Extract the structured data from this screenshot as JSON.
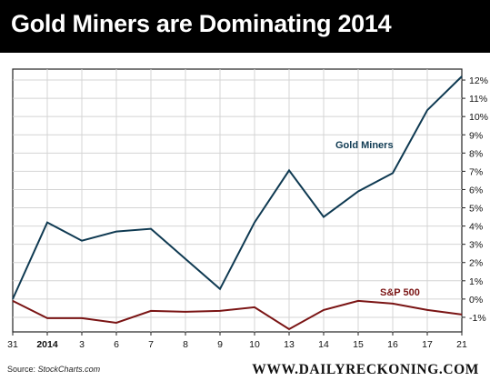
{
  "header": {
    "title": "Gold Miners are Dominating 2014"
  },
  "footer": {
    "source_label": "Source:",
    "source_name": "StockCharts.com",
    "brand": "WWW.DAILYRECKONING.COM"
  },
  "colors": {
    "gold_miners": "#0f3a52",
    "sp500": "#7a1414",
    "grid": "#d4d4d4",
    "title_bar": "#000000"
  },
  "chart_data": {
    "type": "line",
    "title": "Gold Miners are Dominating 2014",
    "x": [
      "31",
      "2014",
      "3",
      "6",
      "7",
      "8",
      "9",
      "10",
      "13",
      "14",
      "15",
      "16",
      "17",
      "21"
    ],
    "y_ticks": [
      "12%",
      "11%",
      "10%",
      "9%",
      "8%",
      "7%",
      "6%",
      "5%",
      "4%",
      "3%",
      "2%",
      "1%",
      "0%",
      "-1%"
    ],
    "y_tick_values": [
      12,
      11,
      10,
      9,
      8,
      7,
      6,
      5,
      4,
      3,
      2,
      1,
      0,
      -1
    ],
    "ylim": [
      -1.8,
      12.6
    ],
    "y_axis_position": "right",
    "grid": true,
    "series": [
      {
        "name": "Gold Miners",
        "color": "#0f3a52",
        "values": [
          0,
          4.2,
          3.2,
          3.7,
          3.85,
          2.2,
          0.55,
          4.2,
          7.05,
          4.5,
          5.9,
          6.9,
          10.35,
          12.2
        ]
      },
      {
        "name": "S&P 500",
        "color": "#7a1414",
        "values": [
          -0.1,
          -1.05,
          -1.05,
          -1.3,
          -0.65,
          -0.7,
          -0.65,
          -0.45,
          -1.65,
          -0.6,
          -0.1,
          -0.25,
          -0.6,
          -0.85
        ]
      }
    ]
  }
}
